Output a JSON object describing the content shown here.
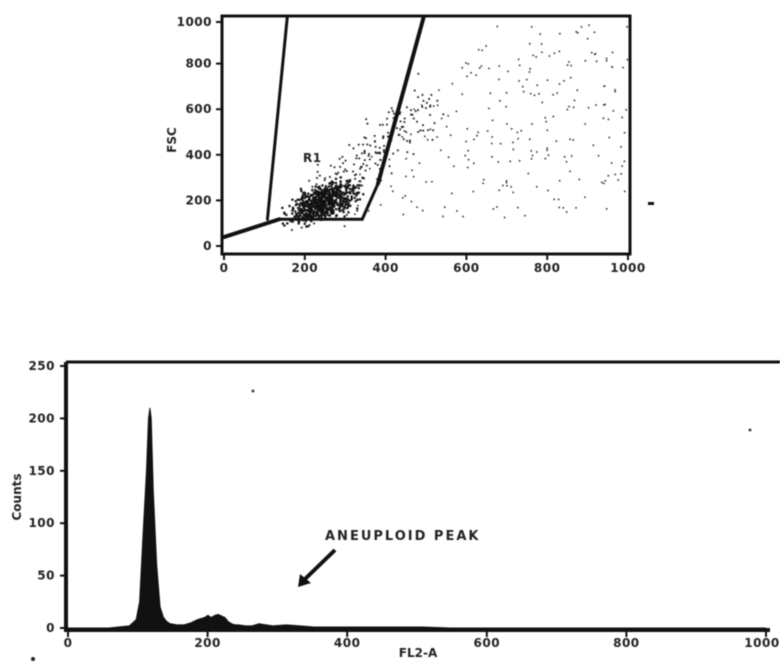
{
  "chart_data": [
    {
      "type": "scatter",
      "title": "",
      "xlabel": "",
      "ylabel": "FSC",
      "xlim": [
        0,
        1023
      ],
      "ylim": [
        0,
        1023
      ],
      "x_ticks": [
        "0",
        "200",
        "400",
        "600",
        "800",
        "1000"
      ],
      "y_ticks": [
        "0",
        "200",
        "400",
        "600",
        "800",
        "1000"
      ],
      "gates": [
        {
          "name": "R1",
          "x": [
            0,
            140,
            350,
            390,
            110,
            160,
            505
          ],
          "y": [
            40,
            120,
            120,
            280,
            120,
            1023,
            1023
          ]
        }
      ],
      "gate_label": "R1",
      "grid": false
    },
    {
      "type": "area",
      "title": "",
      "xlabel": "FL2-A",
      "ylabel": "Counts",
      "xlim": [
        0,
        1023
      ],
      "ylim": [
        0,
        250
      ],
      "x_ticks": [
        "0",
        "200",
        "400",
        "600",
        "800",
        "1000"
      ],
      "y_ticks": [
        "0",
        "50",
        "100",
        "150",
        "200",
        "250"
      ],
      "x": [
        0,
        60,
        90,
        100,
        105,
        110,
        115,
        118,
        120,
        122,
        125,
        130,
        135,
        140,
        145,
        150,
        160,
        170,
        180,
        190,
        200,
        205,
        210,
        215,
        220,
        230,
        235,
        240,
        245,
        250,
        260,
        270,
        280,
        300,
        320,
        340,
        360,
        380,
        400,
        440,
        480,
        520,
        560,
        600,
        650,
        700,
        750,
        800,
        850,
        900,
        950,
        1000,
        1023
      ],
      "values": [
        0,
        0,
        2,
        8,
        25,
        90,
        150,
        200,
        210,
        200,
        130,
        60,
        20,
        10,
        6,
        4,
        3,
        3,
        5,
        8,
        10,
        12,
        10,
        12,
        13,
        10,
        6,
        4,
        3,
        3,
        2,
        2,
        4,
        2,
        3,
        2,
        1,
        1,
        1,
        1,
        1,
        1,
        0,
        0,
        0,
        0,
        0,
        0,
        0,
        0,
        0,
        0,
        0
      ],
      "annotations": [
        {
          "text": "ANEUPLOID PEAK",
          "x": 190,
          "y": 55
        }
      ],
      "grid": false
    }
  ]
}
